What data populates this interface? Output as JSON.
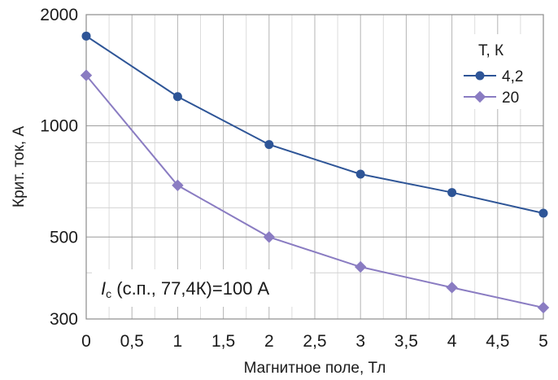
{
  "chart_data": {
    "type": "line",
    "xlabel": "Магнитное поле, Тл",
    "ylabel": "Крит. ток, А",
    "x_tick_labels": [
      "0",
      "0,5",
      "1",
      "1,5",
      "2",
      "2,5",
      "3",
      "3,5",
      "4",
      "4,5",
      "5"
    ],
    "y_tick_labels": [
      "300",
      "500",
      "1000",
      "2000"
    ],
    "xlim": [
      0,
      5
    ],
    "ylim": [
      300,
      2000
    ],
    "yscale": "log",
    "grid": true,
    "legend": {
      "title": "T, К",
      "placement": "top-right"
    },
    "series": [
      {
        "name": "4,2",
        "color": "#2e5597",
        "marker": "circle",
        "x": [
          0,
          1,
          2,
          3,
          4,
          5
        ],
        "y": [
          1750,
          1200,
          890,
          740,
          660,
          580
        ]
      },
      {
        "name": "20",
        "color": "#8a7cc2",
        "marker": "diamond",
        "x": [
          0,
          1,
          2,
          3,
          4,
          5
        ],
        "y": [
          1370,
          690,
          500,
          415,
          365,
          322
        ]
      }
    ],
    "annotation": {
      "symbol": "I",
      "subscript": "c",
      "text": " (с.п., 77,4К)=100 А"
    }
  }
}
